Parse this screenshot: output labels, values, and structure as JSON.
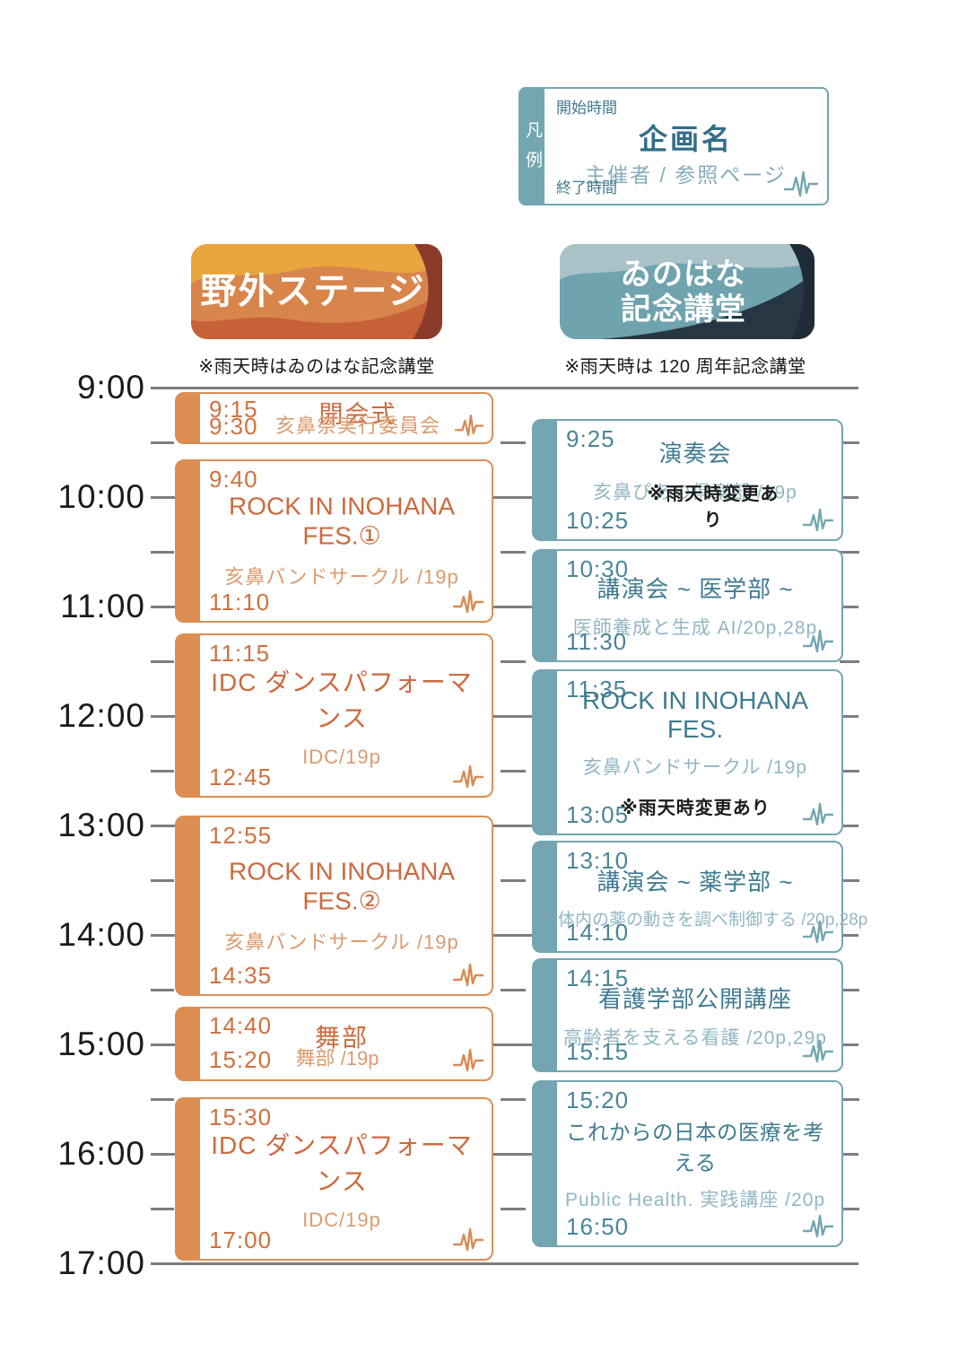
{
  "legend": {
    "label": "凡例",
    "start_label": "開始時間",
    "title_label": "企画名",
    "organizer_label": "主催者 / 参照ページ",
    "end_label": "終了時間"
  },
  "time_axis": {
    "labels": [
      "9:00",
      "10:00",
      "11:00",
      "12:00",
      "13:00",
      "14:00",
      "15:00",
      "16:00",
      "17:00"
    ]
  },
  "columns": [
    {
      "title_lines": [
        "野外ステージ"
      ],
      "note": "※雨天時はゐのはな記念講堂",
      "accent": "#DC8E52",
      "events": [
        {
          "start": "9:15",
          "end": "9:30",
          "title": "開会式",
          "organizer": "亥鼻祭実行委員会"
        },
        {
          "start": "9:40",
          "end": "11:10",
          "title": "ROCK IN INOHANA FES.①",
          "organizer": "亥鼻バンドサークル /19p"
        },
        {
          "start": "11:15",
          "end": "12:45",
          "title": "IDC ダンスパフォーマンス",
          "organizer": "IDC/19p"
        },
        {
          "start": "12:55",
          "end": "14:35",
          "title": "ROCK IN INOHANA FES.②",
          "organizer": "亥鼻バンドサークル /19p"
        },
        {
          "start": "14:40",
          "end": "15:20",
          "title": "舞部",
          "organizer": "舞部 /19p"
        },
        {
          "start": "15:30",
          "end": "17:00",
          "title": "IDC ダンスパフォーマンス",
          "organizer": "IDC/19p"
        }
      ]
    },
    {
      "title_lines": [
        "ゐのはな",
        "記念講堂"
      ],
      "note": "※雨天時は 120 周年記念講堂",
      "accent": "#73A6B1",
      "events": [
        {
          "start": "9:25",
          "end": "10:25",
          "title": "演奏会",
          "organizer": "亥鼻ぴあの倶楽部 /19p",
          "rain_note": "※雨天時変更あり"
        },
        {
          "start": "10:30",
          "end": "11:30",
          "title": "講演会 ~ 医学部 ~",
          "organizer": "医師養成と生成 AI/20p,28p"
        },
        {
          "start": "11:35",
          "end": "13:05",
          "title": "ROCK IN INOHANA FES.",
          "organizer": "亥鼻バンドサークル /19p",
          "rain_note": "※雨天時変更あり"
        },
        {
          "start": "13:10",
          "end": "14:10",
          "title": "講演会 ~ 薬学部 ~",
          "organizer": "体内の薬の動きを調べ制御する /20p,28p"
        },
        {
          "start": "14:15",
          "end": "15:15",
          "title": "看護学部公開講座",
          "organizer": "高齢者を支える看護 /20p,29p"
        },
        {
          "start": "15:20",
          "end": "16:50",
          "title": "これからの日本の医療を考える",
          "organizer": "Public Health. 実践講座 /20p"
        }
      ]
    }
  ],
  "colors": {
    "orange_accent": "#DC8E52",
    "orange_text": "#D0703F",
    "orange_muted": "#DB9B6F",
    "teal_accent": "#73A6B1",
    "teal_text": "#4A8599",
    "teal_muted": "#92B7C3",
    "gridline": "#7E7E7E",
    "note_text": "#161616"
  }
}
